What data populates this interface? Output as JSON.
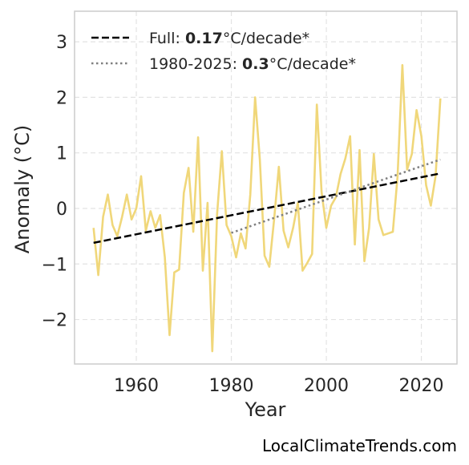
{
  "chart_data": {
    "type": "line",
    "xlabel": "Year",
    "ylabel": "Anomaly (°C)",
    "xlim": [
      1947,
      2027.5
    ],
    "ylim": [
      -2.8,
      3.55
    ],
    "xticks": [
      1960,
      1980,
      2000,
      2020
    ],
    "yticks": [
      -2,
      -1,
      0,
      1,
      2,
      3
    ],
    "ytick_labels": [
      "−2",
      "−1",
      "0",
      "1",
      "2",
      "3"
    ],
    "grid": true,
    "legend_position": "top-left",
    "series": [
      {
        "kind": "anomaly",
        "color": "#f0d77a",
        "x": [
          1951,
          1952,
          1953,
          1954,
          1955,
          1956,
          1957,
          1958,
          1959,
          1960,
          1961,
          1962,
          1963,
          1964,
          1965,
          1966,
          1967,
          1968,
          1969,
          1970,
          1971,
          1972,
          1973,
          1974,
          1975,
          1976,
          1977,
          1978,
          1979,
          1980,
          1981,
          1982,
          1983,
          1984,
          1985,
          1986,
          1987,
          1988,
          1989,
          1990,
          1991,
          1992,
          1993,
          1994,
          1995,
          1996,
          1997,
          1998,
          1999,
          2000,
          2001,
          2002,
          2003,
          2004,
          2005,
          2006,
          2007,
          2008,
          2009,
          2010,
          2011,
          2012,
          2013,
          2014,
          2015,
          2016,
          2017,
          2018,
          2019,
          2020,
          2021,
          2022,
          2023,
          2024
        ],
        "values": [
          -0.35,
          -1.2,
          -0.15,
          0.25,
          -0.3,
          -0.5,
          -0.15,
          0.25,
          -0.2,
          0.0,
          0.58,
          -0.4,
          -0.05,
          -0.35,
          -0.12,
          -0.88,
          -2.28,
          -1.15,
          -1.1,
          0.28,
          0.73,
          -0.42,
          1.28,
          -1.12,
          0.1,
          -2.57,
          -0.1,
          1.03,
          -0.3,
          -0.5,
          -0.88,
          -0.45,
          -0.72,
          0.25,
          2.0,
          0.88,
          -0.85,
          -1.05,
          -0.2,
          0.75,
          -0.4,
          -0.7,
          -0.35,
          0.1,
          -1.12,
          -0.98,
          -0.82,
          1.87,
          0.3,
          -0.35,
          0.05,
          0.2,
          0.62,
          0.9,
          1.3,
          -0.65,
          1.05,
          -0.95,
          -0.35,
          0.98,
          -0.2,
          -0.48,
          -0.45,
          -0.42,
          0.58,
          2.58,
          0.7,
          0.98,
          1.77,
          1.3,
          0.42,
          0.05,
          0.58,
          1.98
        ]
      },
      {
        "kind": "trend-full",
        "color": "#000000",
        "dash": "dashed",
        "x": [
          1951,
          2024
        ],
        "values": [
          -0.62,
          0.63
        ]
      },
      {
        "kind": "trend-recent",
        "color": "#808080",
        "dash": "dotted",
        "x": [
          1980,
          2024
        ],
        "values": [
          -0.44,
          0.88
        ]
      }
    ],
    "legend": [
      {
        "prefix": "Full: ",
        "bold": "0.17",
        "suffix": "°C/decade*"
      },
      {
        "prefix": "1980-2025: ",
        "bold": "0.3",
        "suffix": "°C/decade*"
      }
    ]
  },
  "credit": "LocalClimateTrends.com"
}
